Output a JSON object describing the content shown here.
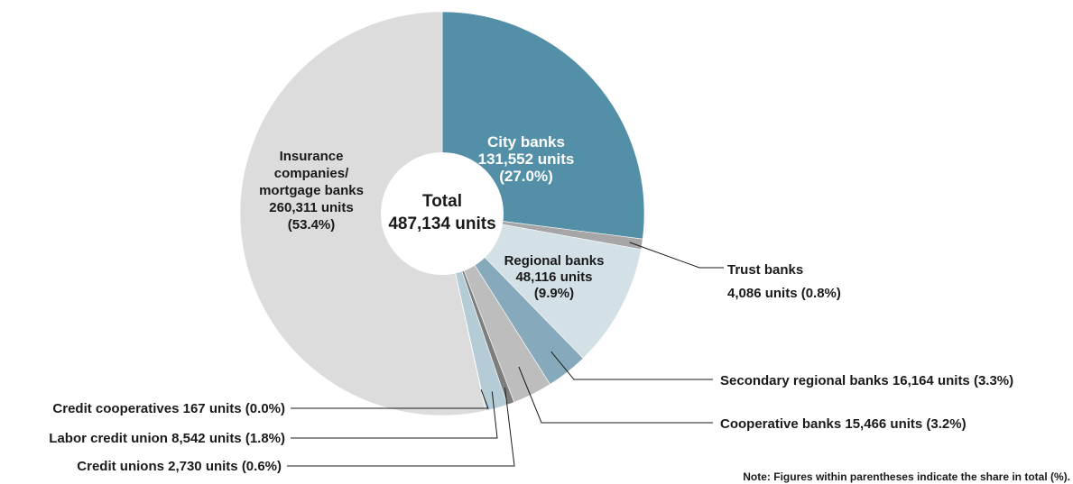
{
  "chart_data": {
    "type": "pie",
    "center_label": [
      "Total",
      "487,134 units"
    ],
    "slices": [
      {
        "name": "City banks",
        "value": 131552,
        "value_label": "131,552 units",
        "share_label": "(27.0%)",
        "color": "#548fa8"
      },
      {
        "name": "Trust banks",
        "value": 4086,
        "value_label": "4,086 units",
        "share_label": "(0.8%)",
        "color": "#a6a6a6"
      },
      {
        "name": "Regional banks",
        "value": 48116,
        "value_label": "48,116 units",
        "share_label": "(9.9%)",
        "color": "#d3e0e6"
      },
      {
        "name": "Secondary regional banks",
        "value": 16164,
        "value_label": "16,164 units",
        "share_label": "(3.3%)",
        "color": "#86aabb"
      },
      {
        "name": "Cooperative banks",
        "value": 15466,
        "value_label": "15,466 units",
        "share_label": "(3.2%)",
        "color": "#bdbdbd"
      },
      {
        "name": "Credit unions",
        "value": 2730,
        "value_label": "2,730 units",
        "share_label": "(0.6%)",
        "color": "#7d7d7d"
      },
      {
        "name": "Labor credit union",
        "value": 8542,
        "value_label": "8,542 units",
        "share_label": "(1.8%)",
        "color": "#b4ccd6"
      },
      {
        "name": "Credit cooperatives",
        "value": 167,
        "value_label": "167 units",
        "share_label": "(0.0%)",
        "color": "#8aa3ae"
      },
      {
        "name": "Insurance companies/ mortgage banks",
        "value": 260311,
        "value_label": "260,311 units",
        "share_label": "(53.4%)",
        "color": "#dcdcdc"
      }
    ],
    "inside_labels": {
      "City banks": [
        "City banks",
        "131,552 units",
        "(27.0%)"
      ],
      "Regional banks": [
        "Regional banks",
        "48,116 units",
        "(9.9%)"
      ],
      "Insurance companies/ mortgage banks": [
        "Insurance",
        "companies/",
        "mortgage banks",
        "260,311 units",
        "(53.4%)"
      ]
    },
    "outside_labels": {
      "Trust banks": [
        "Trust banks",
        "4,086 units (0.8%)"
      ],
      "Secondary regional banks": [
        "Secondary regional banks  16,164 units (3.3%)"
      ],
      "Cooperative banks": [
        "Cooperative banks  15,466 units (3.2%)"
      ],
      "Credit cooperatives": [
        "Credit cooperatives  167 units (0.0%)"
      ],
      "Labor credit union": [
        "Labor credit union  8,542 units (1.8%)"
      ],
      "Credit unions": [
        "Credit unions  2,730 units (0.6%)"
      ]
    },
    "note": "Note: Figures within parentheses indicate the share in total (%).",
    "legend": "none"
  }
}
